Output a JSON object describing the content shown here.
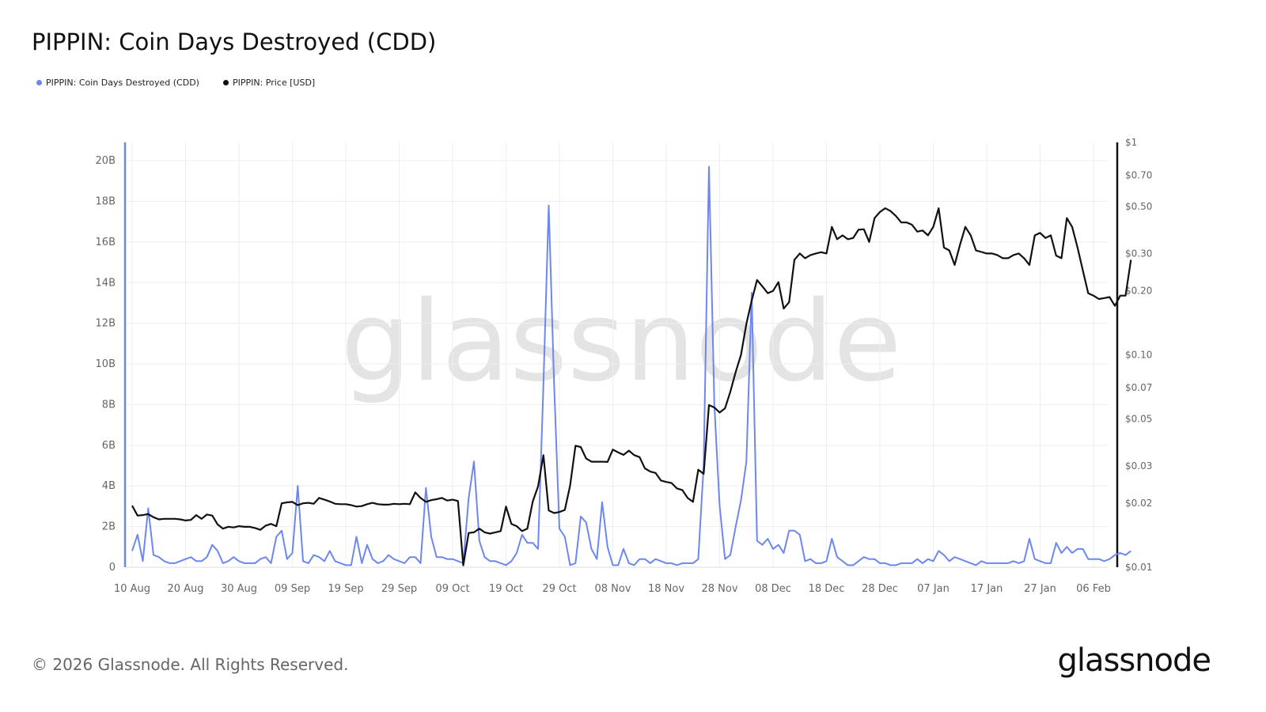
{
  "title": "PIPPIN: Coin Days Destroyed (CDD)",
  "legend": [
    {
      "label": "PIPPIN: Coin Days Destroyed (CDD)",
      "color": "#6d87f0"
    },
    {
      "label": "PIPPIN: Price [USD]",
      "color": "#111111"
    }
  ],
  "watermark": "glassnode",
  "footer": "© 2026 Glassnode. All Rights Reserved.",
  "brand": "glassnode",
  "colors": {
    "cdd": "#6d87f0",
    "price": "#111111",
    "grid": "#eeeeee"
  },
  "chart_data": {
    "type": "line",
    "x_start": "2024-08-10",
    "x_ticks": [
      "10 Aug",
      "20 Aug",
      "30 Aug",
      "09 Sep",
      "19 Sep",
      "29 Sep",
      "09 Oct",
      "19 Oct",
      "29 Oct",
      "08 Nov",
      "18 Nov",
      "28 Nov",
      "08 Dec",
      "18 Dec",
      "28 Dec",
      "07 Jan",
      "17 Jan",
      "27 Jan",
      "06 Feb"
    ],
    "left_axis": {
      "ticks": [
        "0",
        "2B",
        "4B",
        "6B",
        "8B",
        "10B",
        "12B",
        "14B",
        "16B",
        "18B",
        "20B"
      ],
      "values": [
        0,
        2,
        4,
        6,
        8,
        10,
        12,
        14,
        16,
        18,
        20
      ],
      "unit": "B",
      "range": [
        0,
        20.9
      ]
    },
    "right_axis": {
      "scale": "log",
      "ticks": [
        "$0.01",
        "$0.02",
        "$0.03",
        "$0.05",
        "$0.07",
        "$0.10",
        "$0.20",
        "$0.30",
        "$0.50",
        "$0.70",
        "$1"
      ],
      "values": [
        0.01,
        0.02,
        0.03,
        0.05,
        0.07,
        0.1,
        0.2,
        0.3,
        0.5,
        0.7,
        1
      ],
      "range": [
        0.01,
        1
      ]
    },
    "grid": true,
    "series": [
      {
        "name": "PIPPIN: Coin Days Destroyed (CDD)",
        "axis": "left",
        "unit": "billions",
        "values": [
          0.8,
          1.6,
          0.3,
          2.9,
          0.6,
          0.5,
          0.3,
          0.2,
          0.2,
          0.3,
          0.4,
          0.5,
          0.3,
          0.3,
          0.5,
          1.1,
          0.8,
          0.2,
          0.3,
          0.5,
          0.3,
          0.2,
          0.2,
          0.2,
          0.4,
          0.5,
          0.2,
          1.5,
          1.8,
          0.4,
          0.7,
          4.0,
          0.3,
          0.2,
          0.6,
          0.5,
          0.3,
          0.8,
          0.3,
          0.2,
          0.1,
          0.1,
          1.5,
          0.2,
          1.1,
          0.4,
          0.2,
          0.3,
          0.6,
          0.4,
          0.3,
          0.2,
          0.5,
          0.5,
          0.2,
          3.9,
          1.5,
          0.5,
          0.5,
          0.4,
          0.4,
          0.3,
          0.2,
          3.4,
          5.2,
          1.3,
          0.5,
          0.3,
          0.3,
          0.2,
          0.1,
          0.3,
          0.7,
          1.6,
          1.2,
          1.2,
          0.9,
          9.0,
          17.8,
          9.0,
          1.9,
          1.5,
          0.1,
          0.2,
          2.5,
          2.2,
          0.9,
          0.4,
          3.2,
          1.0,
          0.1,
          0.1,
          0.9,
          0.2,
          0.1,
          0.4,
          0.4,
          0.2,
          0.4,
          0.3,
          0.2,
          0.2,
          0.1,
          0.2,
          0.2,
          0.2,
          0.4,
          5.0,
          19.7,
          8.0,
          3.0,
          0.4,
          0.6,
          2.0,
          3.3,
          5.2,
          13.5,
          1.3,
          1.1,
          1.4,
          0.9,
          1.1,
          0.7,
          1.8,
          1.8,
          1.6,
          0.3,
          0.4,
          0.2,
          0.2,
          0.3,
          1.4,
          0.5,
          0.3,
          0.1,
          0.1,
          0.3,
          0.5,
          0.4,
          0.4,
          0.2,
          0.2,
          0.1,
          0.1,
          0.2,
          0.2,
          0.2,
          0.4,
          0.2,
          0.4,
          0.3,
          0.8,
          0.6,
          0.3,
          0.5,
          0.4,
          0.3,
          0.2,
          0.1,
          0.3,
          0.2,
          0.2,
          0.2,
          0.2,
          0.2,
          0.3,
          0.2,
          0.3,
          1.4,
          0.4,
          0.3,
          0.2,
          0.2,
          1.2,
          0.7,
          1.0,
          0.7,
          0.9,
          0.9,
          0.4,
          0.4,
          0.4,
          0.3,
          0.4,
          0.6,
          0.7,
          0.6,
          0.8
        ]
      },
      {
        "name": "PIPPIN: Price [USD]",
        "axis": "right",
        "unit": "USD",
        "values": [
          0.0195,
          0.0175,
          0.0176,
          0.0178,
          0.0172,
          0.0168,
          0.0169,
          0.0169,
          0.0169,
          0.0168,
          0.0166,
          0.0167,
          0.0176,
          0.0169,
          0.0177,
          0.0175,
          0.0159,
          0.0152,
          0.0155,
          0.0154,
          0.0156,
          0.0155,
          0.0155,
          0.0153,
          0.015,
          0.0157,
          0.016,
          0.0156,
          0.02,
          0.0202,
          0.0203,
          0.0196,
          0.02,
          0.0201,
          0.0199,
          0.0212,
          0.0208,
          0.0204,
          0.0199,
          0.0198,
          0.0198,
          0.0196,
          0.0193,
          0.0194,
          0.0198,
          0.0201,
          0.0198,
          0.0197,
          0.0197,
          0.0199,
          0.0198,
          0.0199,
          0.0198,
          0.0225,
          0.0212,
          0.0203,
          0.0207,
          0.0209,
          0.0212,
          0.0206,
          0.0208,
          0.0205,
          0.0102,
          0.0145,
          0.0146,
          0.0152,
          0.0146,
          0.0144,
          0.0146,
          0.0148,
          0.0193,
          0.016,
          0.0156,
          0.0148,
          0.0152,
          0.0204,
          0.024,
          0.0337,
          0.0185,
          0.018,
          0.0182,
          0.0186,
          0.0242,
          0.0373,
          0.0368,
          0.0325,
          0.0314,
          0.0314,
          0.0314,
          0.0313,
          0.0358,
          0.0347,
          0.0338,
          0.0354,
          0.0337,
          0.033,
          0.0292,
          0.0282,
          0.0278,
          0.0256,
          0.0252,
          0.0249,
          0.0235,
          0.0231,
          0.0212,
          0.0203,
          0.0288,
          0.0275,
          0.058,
          0.0565,
          0.0535,
          0.056,
          0.067,
          0.083,
          0.1,
          0.14,
          0.18,
          0.225,
          0.21,
          0.195,
          0.2,
          0.22,
          0.165,
          0.177,
          0.28,
          0.3,
          0.285,
          0.295,
          0.3,
          0.304,
          0.3,
          0.4,
          0.35,
          0.365,
          0.35,
          0.355,
          0.388,
          0.39,
          0.34,
          0.44,
          0.47,
          0.49,
          0.475,
          0.45,
          0.42,
          0.42,
          0.41,
          0.38,
          0.385,
          0.365,
          0.4,
          0.49,
          0.32,
          0.31,
          0.265,
          0.33,
          0.4,
          0.365,
          0.31,
          0.305,
          0.3,
          0.3,
          0.295,
          0.285,
          0.285,
          0.295,
          0.3,
          0.285,
          0.265,
          0.365,
          0.375,
          0.355,
          0.365,
          0.293,
          0.285,
          0.44,
          0.4,
          0.32,
          0.25,
          0.195,
          0.19,
          0.183,
          0.185,
          0.187,
          0.17,
          0.19,
          0.19,
          0.28
        ]
      }
    ]
  }
}
